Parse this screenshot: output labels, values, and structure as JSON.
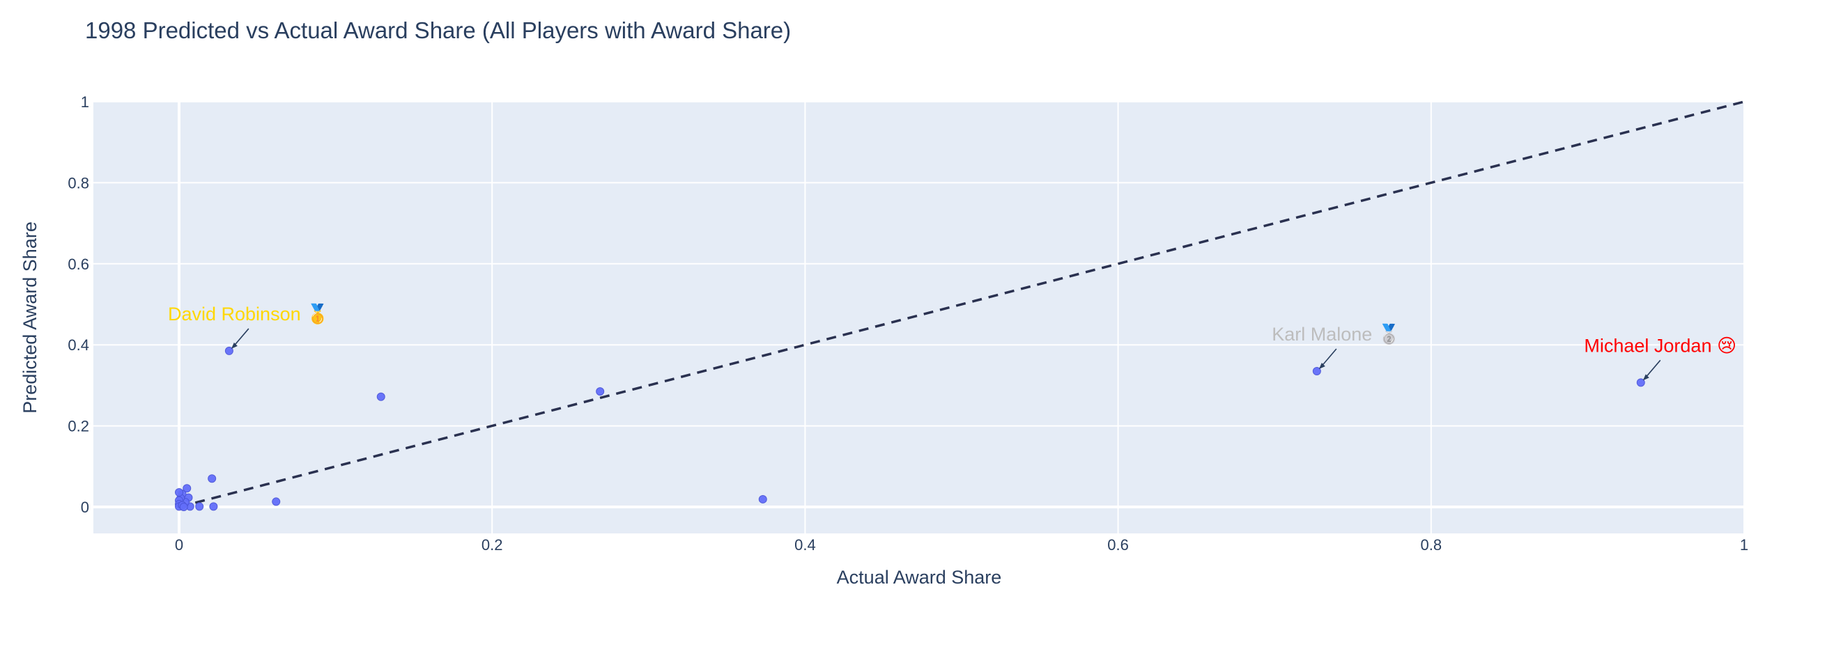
{
  "chart_data": {
    "type": "scatter",
    "title": "1998 Predicted vs Actual Award Share (All Players with Award Share)",
    "xlabel": "Actual Award Share",
    "ylabel": "Predicted Award Share",
    "xlim": [
      -0.055,
      1.0
    ],
    "ylim": [
      -0.065,
      1.0
    ],
    "xticks": [
      0,
      0.2,
      0.4,
      0.6,
      0.8,
      1
    ],
    "xtick_labels": [
      "0",
      "0.2",
      "0.4",
      "0.6",
      "0.8",
      "1"
    ],
    "yticks": [
      0,
      0.2,
      0.4,
      0.6,
      0.8,
      1
    ],
    "ytick_labels": [
      "0",
      "0.2",
      "0.4",
      "0.6",
      "0.8",
      "1"
    ],
    "grid": true,
    "reference_line": {
      "x": [
        0,
        1
      ],
      "y": [
        0,
        1
      ],
      "style": "dashed",
      "color": "#2a3150"
    },
    "marker_color": "#636efa",
    "points": [
      {
        "x": 0.934,
        "y": 0.307
      },
      {
        "x": 0.727,
        "y": 0.335
      },
      {
        "x": 0.032,
        "y": 0.385
      },
      {
        "x": 0.373,
        "y": 0.019
      },
      {
        "x": 0.269,
        "y": 0.285
      },
      {
        "x": 0.129,
        "y": 0.272
      },
      {
        "x": 0.062,
        "y": 0.013
      },
      {
        "x": 0.021,
        "y": 0.07
      },
      {
        "x": 0.022,
        "y": 0.001
      },
      {
        "x": 0.013,
        "y": 0.001
      },
      {
        "x": 0.005,
        "y": 0.046
      },
      {
        "x": 0.006,
        "y": 0.023
      },
      {
        "x": 0.007,
        "y": 0.001
      },
      {
        "x": 0.004,
        "y": 0.012
      },
      {
        "x": 0.002,
        "y": 0.032
      },
      {
        "x": 0.001,
        "y": 0.022
      },
      {
        "x": 0.0,
        "y": 0.036
      },
      {
        "x": 0.0,
        "y": 0.016
      },
      {
        "x": 0.0,
        "y": 0.007
      },
      {
        "x": 0.0,
        "y": 0.001
      },
      {
        "x": 0.002,
        "y": 0.004
      },
      {
        "x": 0.003,
        "y": 0.0
      }
    ],
    "annotations": [
      {
        "text": "Michael Jordan 😢",
        "x": 0.934,
        "y": 0.307,
        "color": "#ff0000"
      },
      {
        "text": "Karl Malone 🥈",
        "x": 0.727,
        "y": 0.335,
        "color": "#bdbdbd"
      },
      {
        "text": "David Robinson 🥇",
        "x": 0.032,
        "y": 0.385,
        "color": "#ffd700"
      }
    ]
  }
}
